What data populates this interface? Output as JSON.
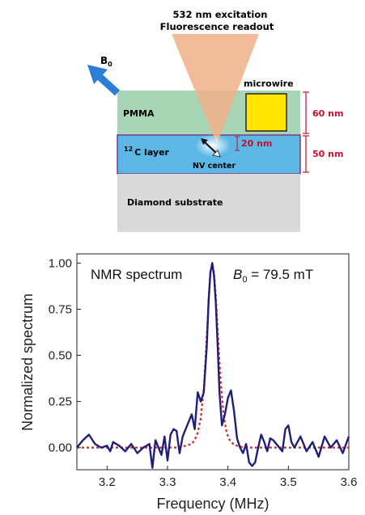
{
  "diagram": {
    "excitation_line1": "532 nm excitation",
    "excitation_line2": "Fluorescence readout",
    "b0_symbol": "B",
    "b0_sub": "0",
    "microwire": "microwire",
    "pmma": "PMMA",
    "c12_sup": "12",
    "c12_layer": "C layer",
    "nv_center": "NV center",
    "substrate": "Diamond substrate",
    "dim_60": "60 nm",
    "dim_20": "20 nm",
    "dim_50": "50 nm",
    "colors": {
      "pmma": "#a8d5b5",
      "c12": "#5bb8e6",
      "substrate": "#d9d9d9",
      "beam": "#f0b08a",
      "microwire": "#ffe600",
      "b0_arrow": "#2b7fd4",
      "dims": "#c8102e"
    }
  },
  "chart_data": {
    "type": "line",
    "title": "NMR spectrum",
    "annotation_symbol": "B",
    "annotation_sub": "0",
    "annotation_value": " = 79.5 mT",
    "xlabel": "Frequency (MHz)",
    "ylabel": "Normalized spectrum",
    "xlim": [
      3.15,
      3.6
    ],
    "ylim": [
      -0.12,
      1.05
    ],
    "xticks": [
      "3.2",
      "3.3",
      "3.4",
      "3.5",
      "3.6"
    ],
    "yticks": [
      "0.00",
      "0.25",
      "0.50",
      "0.75",
      "1.00"
    ],
    "series": [
      {
        "style": "measured",
        "color": "#1f1f7a",
        "x": [
          3.15,
          3.16,
          3.17,
          3.18,
          3.19,
          3.2,
          3.205,
          3.21,
          3.22,
          3.23,
          3.24,
          3.25,
          3.26,
          3.27,
          3.275,
          3.28,
          3.29,
          3.295,
          3.3,
          3.305,
          3.31,
          3.315,
          3.32,
          3.325,
          3.33,
          3.335,
          3.34,
          3.345,
          3.35,
          3.355,
          3.36,
          3.365,
          3.368,
          3.371,
          3.374,
          3.377,
          3.38,
          3.383,
          3.386,
          3.39,
          3.395,
          3.4,
          3.405,
          3.41,
          3.415,
          3.42,
          3.425,
          3.43,
          3.435,
          3.44,
          3.445,
          3.45,
          3.455,
          3.46,
          3.465,
          3.47,
          3.475,
          3.48,
          3.485,
          3.49,
          3.495,
          3.5,
          3.505,
          3.51,
          3.52,
          3.53,
          3.54,
          3.55,
          3.56,
          3.57,
          3.58,
          3.59,
          3.6
        ],
        "y": [
          0.0,
          0.04,
          0.07,
          0.02,
          0.0,
          0.01,
          -0.02,
          0.03,
          0.01,
          -0.02,
          0.02,
          -0.03,
          0.0,
          0.02,
          -0.11,
          0.04,
          -0.04,
          0.06,
          -0.07,
          0.07,
          0.1,
          0.09,
          -0.03,
          0.06,
          0.1,
          0.14,
          0.18,
          0.1,
          0.3,
          0.25,
          0.3,
          0.55,
          0.8,
          0.95,
          1.0,
          0.93,
          0.78,
          0.55,
          0.3,
          0.12,
          0.18,
          0.27,
          0.31,
          0.2,
          0.05,
          0.0,
          -0.03,
          0.02,
          -0.08,
          -0.1,
          -0.08,
          0.0,
          0.07,
          0.03,
          -0.02,
          0.05,
          0.04,
          0.02,
          0.0,
          -0.02,
          0.1,
          0.12,
          0.03,
          0.0,
          0.06,
          -0.02,
          0.03,
          -0.05,
          0.06,
          0.0,
          0.04,
          -0.03,
          0.06
        ]
      },
      {
        "style": "fit",
        "color": "#e02020",
        "x": [
          3.15,
          3.2,
          3.25,
          3.3,
          3.32,
          3.33,
          3.34,
          3.345,
          3.35,
          3.355,
          3.36,
          3.364,
          3.368,
          3.371,
          3.374,
          3.377,
          3.38,
          3.384,
          3.388,
          3.393,
          3.398,
          3.403,
          3.41,
          3.42,
          3.43,
          3.45,
          3.5,
          3.55,
          3.6
        ],
        "y": [
          0.0,
          0.0,
          0.0,
          0.0,
          0.0,
          0.01,
          0.02,
          0.04,
          0.08,
          0.16,
          0.32,
          0.55,
          0.8,
          0.95,
          1.0,
          0.95,
          0.82,
          0.58,
          0.36,
          0.17,
          0.08,
          0.04,
          0.015,
          0.005,
          0.0,
          0.0,
          0.0,
          0.0,
          0.0
        ]
      }
    ]
  }
}
